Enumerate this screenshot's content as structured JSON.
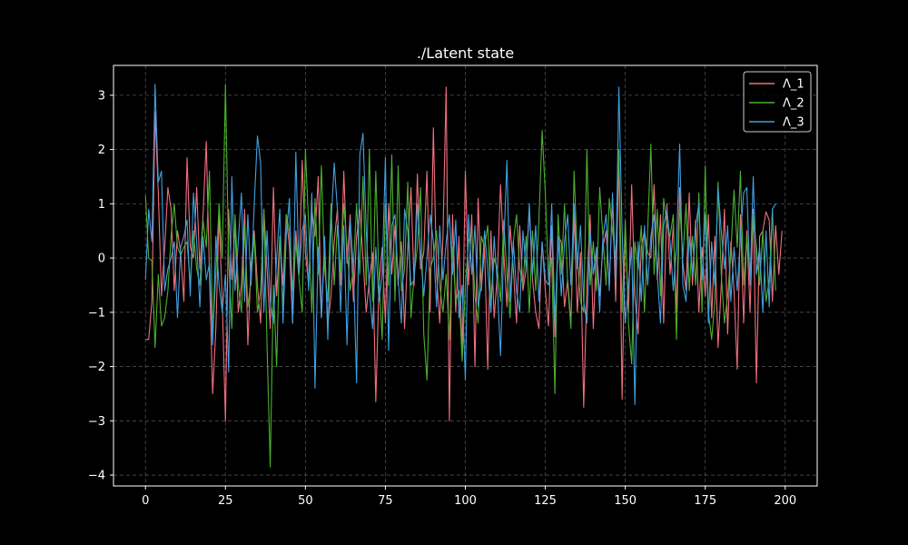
{
  "chart_data": {
    "type": "line",
    "title": "./Latent state",
    "xlabel": "",
    "ylabel": "",
    "xlim": [
      -10,
      210
    ],
    "ylim": [
      -4.2,
      3.55
    ],
    "xticks": [
      0,
      25,
      50,
      75,
      100,
      125,
      150,
      175,
      200
    ],
    "xtick_labels": [
      "0",
      "25",
      "50",
      "75",
      "100",
      "125",
      "150",
      "175",
      "200"
    ],
    "yticks": [
      -4,
      -3,
      -2,
      -1,
      0,
      1,
      2,
      3
    ],
    "ytick_labels": [
      "−4",
      "−3",
      "−2",
      "−1",
      "0",
      "1",
      "2",
      "3"
    ],
    "grid": true,
    "legend_position": "top-right",
    "background": "#000000",
    "series": [
      {
        "name": "Λ_1",
        "color": "#f07080",
        "x_start": 0,
        "values": [
          -1.5,
          -1.5,
          -0.8,
          2.7,
          1.2,
          -0.7,
          0.2,
          1.3,
          0.9,
          -0.6,
          0.5,
          0.1,
          -0.8,
          1.85,
          0.2,
          0.0,
          1.3,
          -0.2,
          0.8,
          2.15,
          -0.3,
          -2.5,
          -1.3,
          0.8,
          -0.8,
          -3.0,
          0.9,
          -0.4,
          0.6,
          -1.0,
          -0.5,
          0.9,
          -1.6,
          -0.1,
          0.5,
          -0.5,
          -1.2,
          0.9,
          -0.2,
          -1.3,
          1.3,
          -0.7,
          0.4,
          -0.5,
          0.8,
          0.2,
          -1.2,
          0.5,
          -0.3,
          1.8,
          0.1,
          -0.5,
          0.9,
          0.4,
          1.5,
          -1.1,
          0.2,
          -1.2,
          -0.7,
          0.3,
          0.9,
          -0.5,
          1.6,
          -0.1,
          0.8,
          -0.8,
          0.4,
          0.9,
          0.0,
          -1.0,
          -0.4,
          0.1,
          -2.65,
          -0.5,
          0.2,
          -1.2,
          1.0,
          -0.3,
          0.6,
          -0.5,
          0.3,
          -1.3,
          0.2,
          1.3,
          -0.5,
          1.55,
          -0.2,
          0.1,
          1.6,
          -1.0,
          2.4,
          -0.3,
          -1.2,
          0.4,
          3.15,
          -3.0,
          0.8,
          -1.0,
          0.4,
          -1.8,
          1.6,
          -0.5,
          0.8,
          -2.0,
          1.1,
          -0.6,
          0.2,
          -2.05,
          0.5,
          -1.1,
          -0.3,
          1.35,
          0.1,
          -0.9,
          0.6,
          -0.2,
          -1.2,
          0.6,
          -0.6,
          -0.2,
          0.9,
          -0.4,
          -1.0,
          -1.3,
          0.3,
          -0.6,
          -1.25,
          0.6,
          -1.45,
          0.4,
          0.3,
          -0.9,
          -0.4,
          -1.2,
          0.8,
          -1.0,
          0.1,
          -2.75,
          -0.5,
          0.8,
          -1.3,
          0.2,
          -0.7,
          0.2,
          0.5,
          -0.5,
          1.1,
          -0.8,
          1.9,
          -2.6,
          0.6,
          -1.0,
          1.35,
          -0.7,
          -1.4,
          0.2,
          0.5,
          0.1,
          0.0,
          1.35,
          -0.4,
          0.8,
          -1.2,
          1.0,
          -0.3,
          0.6,
          -1.0,
          1.3,
          -0.1,
          -0.6,
          1.2,
          -0.5,
          0.7,
          -1.0,
          0.2,
          -0.7,
          0.8,
          -1.1,
          0.4,
          -1.65,
          -0.5,
          0.9,
          -1.4,
          0.3,
          -0.6,
          -2.05,
          0.8,
          -1.2,
          0.5,
          -1.0,
          0.9,
          -2.3,
          0.4,
          0.5,
          0.85,
          0.7,
          -0.8,
          0.6,
          -0.3,
          0.5
        ]
      },
      {
        "name": "Λ_2",
        "color": "#4caf30",
        "x_start": 0,
        "values": [
          1.15,
          0.0,
          -0.05,
          -1.65,
          -0.3,
          -1.25,
          -1.1,
          -0.6,
          0.4,
          1.0,
          0.2,
          0.05,
          0.2,
          0.3,
          -0.5,
          0.5,
          -0.2,
          -0.5,
          0.7,
          0.2,
          1.6,
          -1.4,
          -0.3,
          1.0,
          0.0,
          3.2,
          0.0,
          -1.3,
          0.8,
          -0.5,
          -1.0,
          0.6,
          -0.9,
          -0.4,
          0.4,
          -1.0,
          -0.6,
          0.9,
          -1.6,
          -3.85,
          -0.5,
          -2.0,
          0.4,
          -0.9,
          0.8,
          0.5,
          -0.6,
          0.3,
          -0.4,
          -1.0,
          2.0,
          0.6,
          -1.0,
          1.1,
          -0.3,
          1.7,
          -0.2,
          -0.8,
          1.0,
          -0.5,
          0.6,
          -0.3,
          1.0,
          0.2,
          -0.6,
          -0.2,
          1.0,
          -0.3,
          1.5,
          -0.5,
          2.0,
          -0.8,
          1.6,
          -0.4,
          -1.5,
          1.0,
          -0.5,
          1.9,
          -0.8,
          1.7,
          -0.6,
          -0.2,
          1.4,
          -1.1,
          -0.3,
          0.2,
          1.3,
          -1.4,
          -2.25,
          -0.2,
          0.0,
          0.5,
          -0.5,
          -1.0,
          -0.3,
          -1.5,
          0.2,
          -0.8,
          -0.6,
          -1.9,
          -0.5,
          0.3,
          0.5,
          -0.7,
          -1.2,
          0.4,
          0.2,
          0.6,
          -0.8,
          0.0,
          -0.2,
          -0.8,
          0.7,
          -0.3,
          -1.1,
          0.3,
          0.8,
          -0.2,
          -0.5,
          0.4,
          -1.0,
          0.5,
          -0.6,
          0.7,
          2.35,
          1.2,
          -0.4,
          0.0,
          -2.5,
          0.8,
          -0.3,
          1.0,
          -0.5,
          -1.3,
          1.6,
          0.0,
          -0.8,
          -1.0,
          2.0,
          -0.5,
          0.3,
          -0.6,
          1.3,
          0.4,
          -0.5,
          1.1,
          0.5,
          0.0,
          2.0,
          -1.0,
          0.7,
          -1.2,
          -1.95,
          0.3,
          -0.2,
          0.6,
          -1.0,
          0.5,
          2.1,
          -0.3,
          0.9,
          -0.7,
          1.1,
          0.6,
          0.4,
          0.8,
          -1.5,
          1.0,
          0.0,
          1.0,
          -0.6,
          0.4,
          -0.5,
          1.2,
          -1.0,
          1.7,
          -1.0,
          -1.5,
          -0.8,
          1.4,
          -0.3,
          -1.2,
          -0.7,
          0.1,
          1.25,
          0.2,
          1.6,
          -0.5,
          0.4,
          -0.3,
          0.8,
          0.2,
          -0.5,
          0.5,
          -0.8,
          -0.4,
          0.9,
          -0.6
        ]
      },
      {
        "name": "Λ_3",
        "color": "#40a0e0",
        "x_start": 0,
        "values": [
          -0.4,
          0.9,
          0.3,
          3.2,
          1.4,
          1.6,
          -0.6,
          -0.2,
          0.0,
          0.3,
          -1.1,
          0.2,
          0.4,
          0.7,
          -0.7,
          1.2,
          0.3,
          -0.9,
          0.4,
          -0.4,
          -0.1,
          -1.6,
          0.4,
          -0.5,
          -1.0,
          -0.3,
          -2.1,
          1.5,
          -0.6,
          0.3,
          1.2,
          -0.8,
          0.8,
          -0.5,
          1.0,
          2.25,
          1.75,
          -1.0,
          0.5,
          -0.8,
          -1.2,
          0.0,
          0.9,
          -1.2,
          0.4,
          1.1,
          -1.2,
          1.95,
          -0.3,
          0.5,
          0.8,
          -0.6,
          1.2,
          -2.4,
          0.2,
          -1.1,
          0.4,
          -1.5,
          0.6,
          1.75,
          0.9,
          -1.0,
          0.6,
          -1.6,
          0.7,
          -0.2,
          -2.3,
          1.9,
          2.3,
          0.5,
          -0.6,
          -1.3,
          0.2,
          -0.8,
          -0.3,
          1.85,
          -1.7,
          0.6,
          0.8,
          -0.4,
          -1.2,
          0.9,
          0.5,
          -0.5,
          -0.4,
          1.0,
          0.1,
          -0.7,
          0.0,
          0.8,
          0.3,
          -0.9,
          0.6,
          -0.4,
          0.3,
          0.8,
          -0.3,
          0.7,
          -1.1,
          -0.5,
          -2.25,
          0.8,
          -0.3,
          0.6,
          -0.9,
          -0.5,
          0.5,
          -0.2,
          -1.0,
          0.4,
          -0.5,
          -1.8,
          0.2,
          1.8,
          -0.8,
          0.3,
          -0.6,
          -1.0,
          0.5,
          -0.2,
          1.0,
          -0.3,
          0.6,
          -0.8,
          0.3,
          -0.4,
          -0.5,
          1.0,
          -1.2,
          0.4,
          -0.7,
          0.3,
          0.8,
          -0.5,
          1.0,
          -0.2,
          0.6,
          -0.8,
          -1.2,
          0.5,
          -0.3,
          0.2,
          -1.0,
          0.4,
          0.8,
          -0.6,
          1.2,
          -0.4,
          3.15,
          0.5,
          -1.2,
          -0.5,
          0.2,
          -2.7,
          0.3,
          -0.8,
          0.6,
          -0.5,
          0.4,
          0.8,
          -0.3,
          -1.2,
          0.6,
          0.9,
          0.3,
          -0.6,
          0.2,
          2.1,
          -0.5,
          -0.8,
          0.4,
          -0.3,
          0.6,
          1.0,
          -0.4,
          0.8,
          -1.2,
          0.3,
          -0.5,
          1.3,
          0.5,
          -0.2,
          0.6,
          -0.8,
          0.2,
          -0.6,
          0.4,
          1.2,
          1.3,
          -0.5,
          1.5,
          -0.3,
          0.2,
          -1.0,
          0.5,
          -0.9,
          0.9,
          1.0
        ]
      }
    ]
  }
}
